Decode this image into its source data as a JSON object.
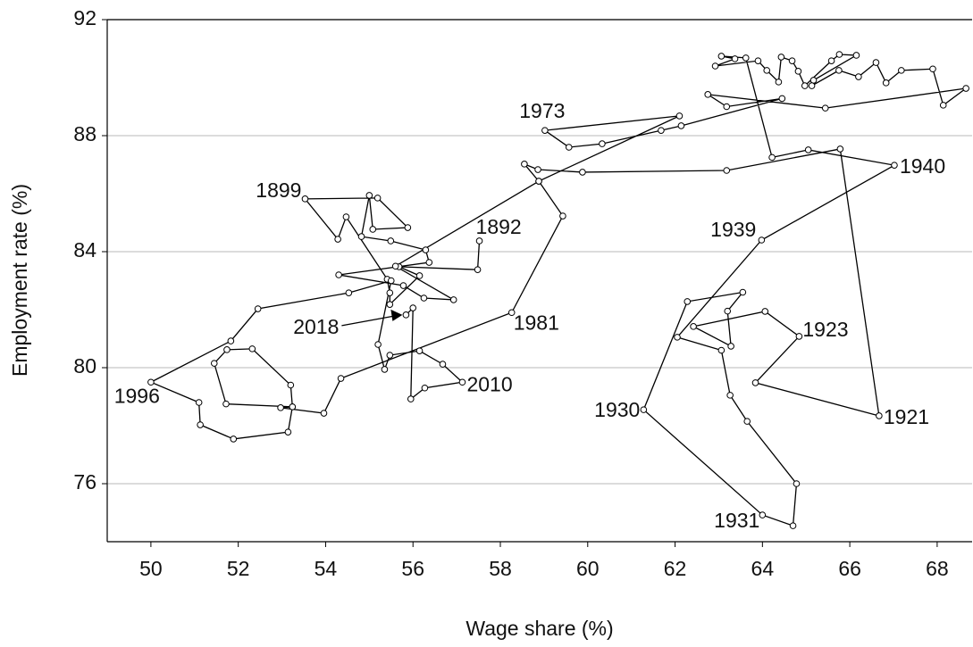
{
  "chart_data": {
    "type": "connected-scatter",
    "x_label": "Wage share (%)",
    "y_label": "Employment rate (%)",
    "xlim": [
      49,
      68.8
    ],
    "ylim": [
      74,
      92
    ],
    "xticks": [
      50,
      52,
      54,
      56,
      58,
      60,
      62,
      64,
      66,
      68
    ],
    "yticks": [
      76,
      80,
      84,
      88,
      92
    ],
    "grid": true,
    "color": "#000000",
    "series": [
      {
        "x": [
          57.52,
          57.48,
          55.68,
          56.15,
          55.47,
          55.47,
          55.41,
          54.47,
          54.28,
          53.53,
          55.19,
          55.88,
          55.08,
          55.0,
          54.82,
          55.49,
          56.29,
          56.37,
          54.3,
          55.78,
          56.25,
          56.93,
          55.6,
          58.88,
          58.55,
          58.86,
          59.88,
          63.18,
          65.78,
          66.67,
          63.84,
          64.84,
          64.06,
          62.42,
          63.28,
          63.2,
          63.55,
          62.28,
          61.28,
          64.0,
          64.7,
          64.78,
          63.65,
          63.26,
          63.06,
          62.05,
          63.98,
          67.02,
          65.05,
          64.22,
          63.62,
          63.06,
          63.37,
          62.92,
          63.9,
          64.1,
          64.37,
          64.43,
          64.68,
          64.82,
          64.97,
          65.58,
          65.76,
          66.15,
          65.17,
          65.13,
          65.75,
          66.2,
          66.6,
          66.83,
          67.18,
          67.9,
          68.14,
          68.66,
          65.44,
          62.75,
          63.18,
          64.45,
          62.14,
          61.68,
          60.33,
          59.57,
          59.02,
          62.1,
          58.88,
          59.43,
          58.26,
          54.35,
          53.96,
          52.97,
          53.24,
          53.2,
          52.32,
          51.74,
          51.45,
          51.72,
          53.24,
          53.14,
          51.89,
          51.13,
          51.1,
          50.0,
          51.83,
          52.45,
          54.53,
          55.5,
          55.2,
          55.35,
          55.47,
          56.15,
          56.68,
          57.13,
          56.27,
          55.95,
          56.0,
          55.84
        ],
        "y": [
          84.37,
          83.38,
          83.48,
          83.17,
          82.18,
          82.58,
          83.05,
          85.2,
          84.43,
          85.82,
          85.85,
          84.83,
          84.77,
          85.94,
          84.52,
          84.37,
          84.06,
          83.63,
          83.2,
          82.83,
          82.4,
          82.34,
          83.5,
          86.43,
          87.02,
          86.83,
          86.74,
          86.8,
          87.54,
          78.34,
          79.48,
          81.08,
          81.94,
          81.42,
          80.74,
          81.95,
          82.6,
          82.28,
          78.55,
          74.92,
          74.55,
          76.0,
          78.15,
          79.05,
          80.6,
          81.05,
          84.4,
          86.98,
          87.51,
          87.25,
          90.68,
          90.74,
          90.65,
          90.4,
          90.58,
          90.25,
          89.85,
          90.71,
          90.58,
          90.22,
          89.72,
          90.58,
          90.8,
          90.77,
          89.91,
          89.72,
          90.25,
          90.03,
          90.52,
          89.82,
          90.25,
          90.3,
          89.05,
          89.63,
          88.95,
          89.42,
          89.0,
          89.28,
          88.34,
          88.18,
          87.72,
          87.6,
          88.18,
          88.68,
          86.43,
          85.23,
          81.9,
          79.63,
          78.43,
          78.62,
          78.65,
          79.4,
          80.65,
          80.62,
          80.15,
          78.75,
          78.65,
          77.78,
          77.54,
          78.03,
          78.8,
          79.5,
          80.92,
          82.03,
          82.58,
          83.0,
          80.8,
          79.94,
          80.43,
          80.58,
          80.12,
          79.5,
          79.3,
          78.92,
          82.06,
          81.82
        ]
      }
    ],
    "annotations": [
      {
        "text": "1892",
        "x": 57.52,
        "y": 84.37
      },
      {
        "text": "1899",
        "x": 53.53,
        "y": 85.82
      },
      {
        "text": "1921",
        "x": 66.67,
        "y": 78.34
      },
      {
        "text": "1923",
        "x": 64.84,
        "y": 81.08
      },
      {
        "text": "1930",
        "x": 61.28,
        "y": 78.55
      },
      {
        "text": "1931",
        "x": 64.0,
        "y": 74.92
      },
      {
        "text": "1939",
        "x": 63.98,
        "y": 84.4
      },
      {
        "text": "1940",
        "x": 67.02,
        "y": 86.98
      },
      {
        "text": "1973",
        "x": 59.02,
        "y": 88.18
      },
      {
        "text": "1981",
        "x": 58.26,
        "y": 81.9
      },
      {
        "text": "1996",
        "x": 50.0,
        "y": 79.5
      },
      {
        "text": "2010",
        "x": 57.13,
        "y": 79.5
      },
      {
        "text": "2018",
        "x": 55.84,
        "y": 81.82
      }
    ]
  }
}
